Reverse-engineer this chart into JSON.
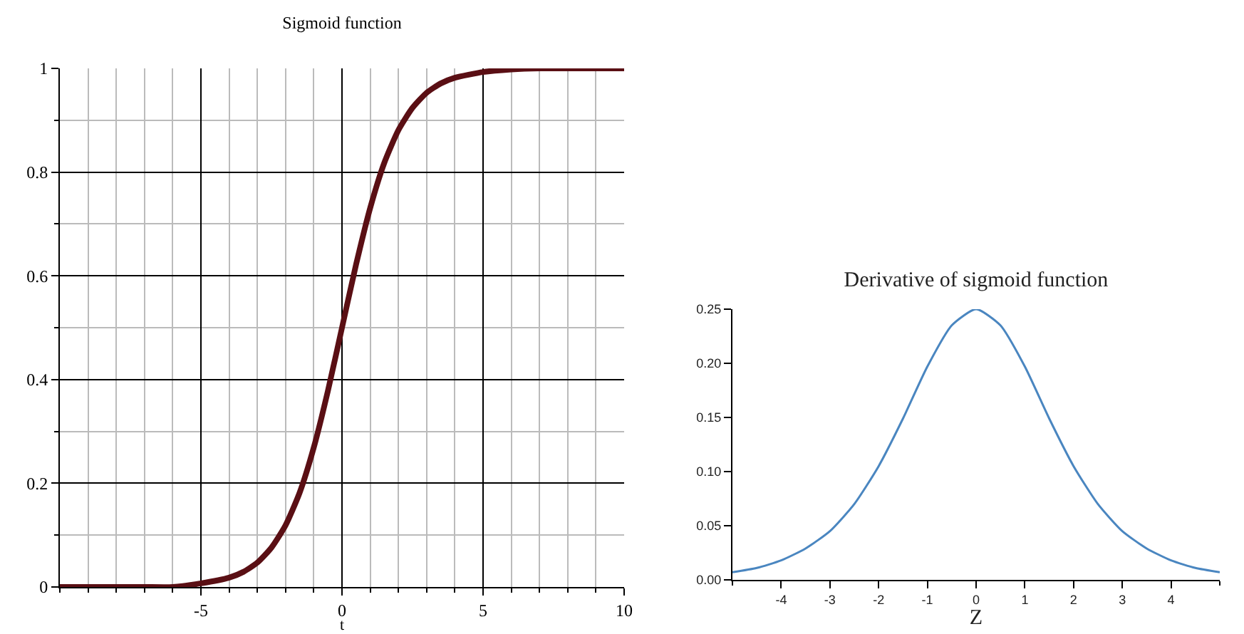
{
  "chart_data": [
    {
      "type": "line",
      "title": "Sigmoid function",
      "xlabel": "t",
      "x": [
        -10,
        -9,
        -8,
        -7,
        -6,
        -5,
        -4,
        -3.5,
        -3,
        -2.5,
        -2,
        -1.5,
        -1,
        -0.5,
        0,
        0.5,
        1,
        1.5,
        2,
        2.5,
        3,
        3.5,
        4,
        5,
        6,
        7,
        8,
        9,
        10
      ],
      "series": [
        {
          "color": "#5a0f14",
          "values": [
            0,
            0,
            0,
            0,
            0,
            0.007,
            0.018,
            0.029,
            0.047,
            0.076,
            0.119,
            0.182,
            0.269,
            0.378,
            0.5,
            0.622,
            0.731,
            0.818,
            0.881,
            0.924,
            0.953,
            0.971,
            0.982,
            0.993,
            0.998,
            1,
            1,
            1,
            1
          ]
        }
      ],
      "xlim": [
        -10,
        10
      ],
      "ylim": [
        0,
        1
      ],
      "xticks": [
        {
          "value": -10,
          "label": null
        },
        {
          "value": -9,
          "label": null
        },
        {
          "value": -8,
          "label": null
        },
        {
          "value": -7,
          "label": null
        },
        {
          "value": -6,
          "label": null
        },
        -5,
        {
          "value": -4,
          "label": null
        },
        {
          "value": -3,
          "label": null
        },
        {
          "value": -2,
          "label": null
        },
        {
          "value": -1,
          "label": null
        },
        0,
        {
          "value": 1,
          "label": null
        },
        {
          "value": 2,
          "label": null
        },
        {
          "value": 3,
          "label": null
        },
        {
          "value": 4,
          "label": null
        },
        5,
        {
          "value": 6,
          "label": null
        },
        {
          "value": 7,
          "label": null
        },
        {
          "value": 8,
          "label": null
        },
        {
          "value": 9,
          "label": null
        },
        10
      ],
      "yticks": [
        0,
        {
          "value": 0.1,
          "label": null
        },
        0.2,
        {
          "value": 0.3,
          "label": null
        },
        0.4,
        {
          "value": 0.5,
          "label": null
        },
        0.6,
        {
          "value": 0.7,
          "label": null
        },
        0.8,
        {
          "value": 0.9,
          "label": null
        },
        1
      ],
      "grid": true,
      "line_style": "solid"
    },
    {
      "type": "line",
      "title": "Derivative of sigmoid function",
      "xlabel": "Z",
      "x": [
        -5,
        -4.5,
        -4,
        -3.5,
        -3,
        -2.5,
        -2,
        -1.5,
        -1,
        -0.5,
        0,
        0.5,
        1,
        1.5,
        2,
        2.5,
        3,
        3.5,
        4,
        4.5,
        5
      ],
      "series": [
        {
          "color": "#4a86c0",
          "values": [
            0.007,
            0.011,
            0.018,
            0.029,
            0.045,
            0.07,
            0.105,
            0.149,
            0.197,
            0.235,
            0.25,
            0.235,
            0.197,
            0.149,
            0.105,
            0.07,
            0.045,
            0.029,
            0.018,
            0.011,
            0.007
          ]
        }
      ],
      "xlim": [
        -5,
        5
      ],
      "ylim": [
        0,
        0.25
      ],
      "xticks": [
        {
          "value": -5,
          "label": null
        },
        -4,
        -3,
        -2,
        -1,
        0,
        1,
        2,
        3,
        4,
        {
          "value": 5,
          "label": null
        }
      ],
      "yticks": [
        {
          "value": 0,
          "label": "0.00"
        },
        0.05,
        {
          "value": 0.1,
          "label": "0.10"
        },
        0.15,
        {
          "value": 0.2,
          "label": "0.20"
        },
        0.25
      ],
      "line_style": "solid"
    }
  ]
}
